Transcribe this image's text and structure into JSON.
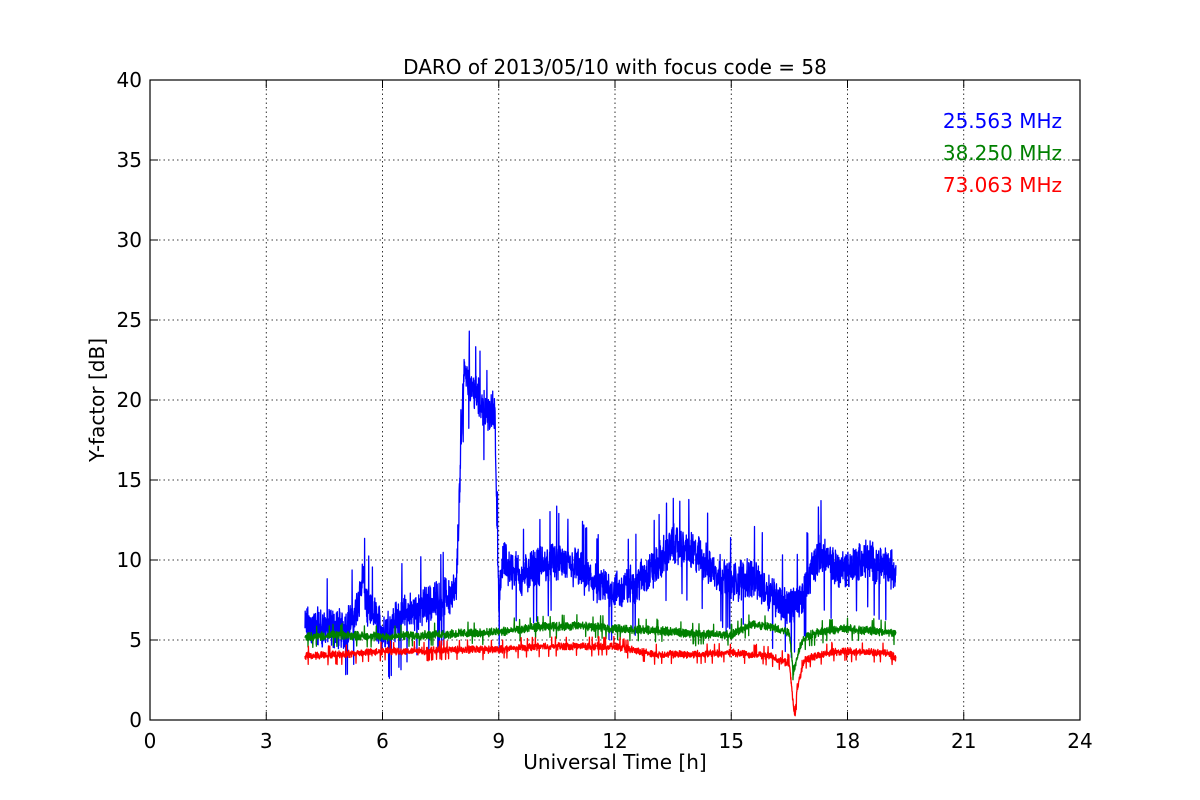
{
  "chart_data": {
    "type": "line",
    "title": "DARO of 2013/05/10 with focus code = 58",
    "xlabel": "Universal Time [h]",
    "ylabel": "Y-factor [dB]",
    "xlim": [
      0,
      24
    ],
    "ylim": [
      0,
      40
    ],
    "xticks": [
      0,
      3,
      6,
      9,
      12,
      15,
      18,
      21,
      24
    ],
    "yticks": [
      0,
      5,
      10,
      15,
      20,
      25,
      30,
      35,
      40
    ],
    "grid": true,
    "legend_position": "top-right",
    "series": [
      {
        "name": "25.563 MHz",
        "color": "#0000ff",
        "noise": 1.6,
        "x": [
          4.0,
          4.5,
          5.0,
          5.3,
          5.5,
          5.6,
          5.8,
          6.0,
          6.5,
          7.0,
          7.5,
          7.9,
          8.1,
          8.3,
          8.5,
          8.7,
          8.9,
          9.0,
          9.1,
          9.3,
          9.6,
          10.0,
          10.5,
          11.0,
          11.5,
          12.0,
          12.5,
          13.0,
          13.5,
          14.0,
          14.5,
          15.0,
          15.5,
          16.0,
          16.5,
          16.8,
          17.0,
          17.3,
          17.6,
          18.0,
          18.5,
          19.0,
          19.25
        ],
        "y": [
          5.8,
          5.8,
          5.7,
          6.5,
          9.0,
          7.0,
          6.5,
          5.5,
          6.5,
          7.0,
          7.5,
          8.0,
          22.0,
          21.0,
          20.0,
          19.0,
          19.5,
          7.0,
          10.0,
          9.5,
          9.0,
          9.5,
          10.0,
          9.5,
          8.5,
          8.0,
          8.5,
          9.5,
          11.0,
          10.5,
          9.5,
          8.5,
          9.0,
          8.0,
          7.0,
          7.5,
          9.0,
          10.5,
          9.5,
          9.5,
          10.0,
          9.5,
          9.3
        ]
      },
      {
        "name": "38.250 MHz",
        "color": "#008000",
        "noise": 0.35,
        "x": [
          4.0,
          5.0,
          6.0,
          7.0,
          8.0,
          9.0,
          10.0,
          11.0,
          12.0,
          13.0,
          14.0,
          15.0,
          15.5,
          16.0,
          16.5,
          16.6,
          16.8,
          17.0,
          17.5,
          18.0,
          19.0,
          19.25
        ],
        "y": [
          5.2,
          5.3,
          5.2,
          5.3,
          5.4,
          5.5,
          5.8,
          5.9,
          5.7,
          5.6,
          5.4,
          5.3,
          6.0,
          5.8,
          5.5,
          3.0,
          4.8,
          5.3,
          5.6,
          5.7,
          5.5,
          5.4
        ]
      },
      {
        "name": "73.063 MHz",
        "color": "#ff0000",
        "noise": 0.3,
        "x": [
          4.0,
          5.0,
          6.0,
          7.0,
          8.0,
          9.0,
          10.0,
          11.0,
          12.0,
          13.0,
          14.0,
          15.0,
          16.0,
          16.5,
          16.6,
          16.65,
          16.7,
          16.9,
          17.5,
          18.0,
          19.0,
          19.25
        ],
        "y": [
          4.0,
          4.1,
          4.3,
          4.3,
          4.4,
          4.4,
          4.6,
          4.6,
          4.6,
          4.1,
          4.1,
          4.2,
          4.0,
          3.5,
          1.0,
          0.2,
          2.0,
          3.8,
          4.2,
          4.3,
          4.2,
          3.9
        ]
      }
    ]
  }
}
